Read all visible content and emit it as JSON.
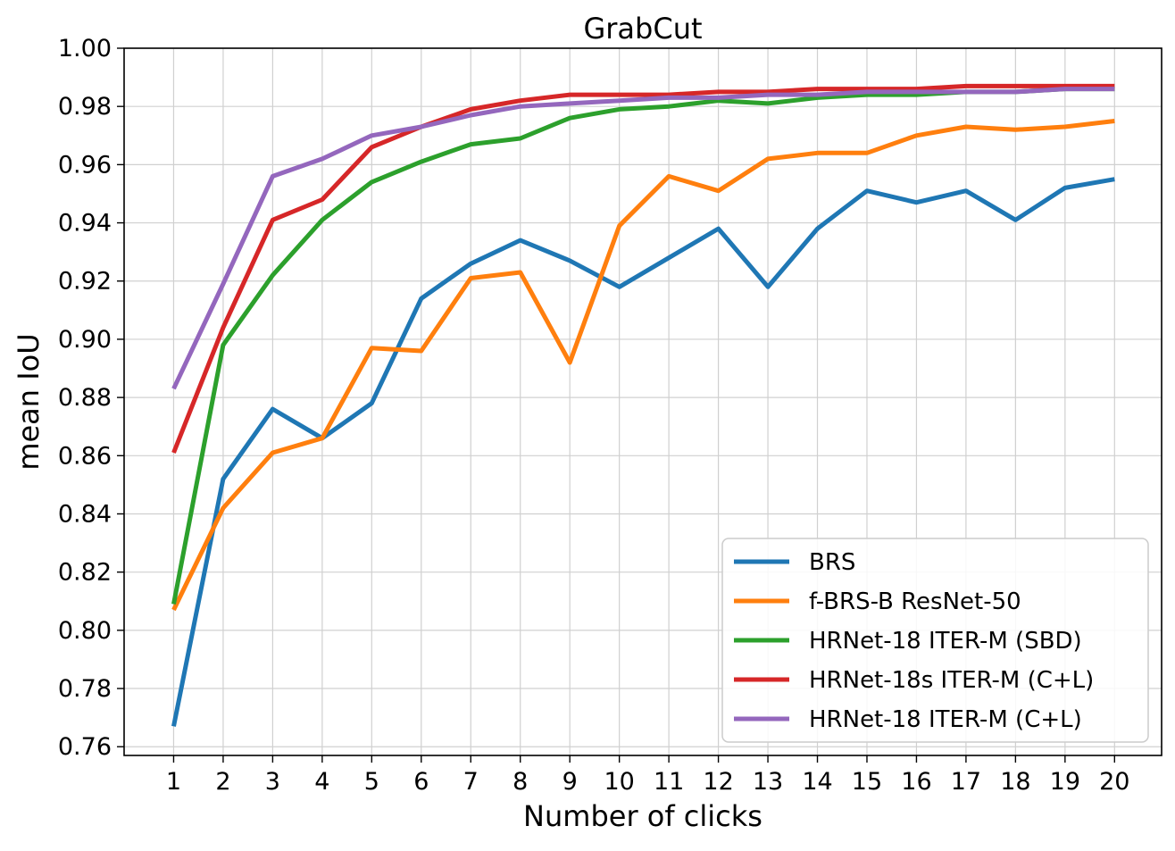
{
  "chart_data": {
    "type": "line",
    "title": "GrabCut",
    "xlabel": "Number of clicks",
    "ylabel": "mean IoU",
    "x": [
      1,
      2,
      3,
      4,
      5,
      6,
      7,
      8,
      9,
      10,
      11,
      12,
      13,
      14,
      15,
      16,
      17,
      18,
      19,
      20
    ],
    "xlim": [
      0.0,
      20.95
    ],
    "ylim": [
      0.757,
      1.0
    ],
    "yticks": [
      0.76,
      0.78,
      0.8,
      0.82,
      0.84,
      0.86,
      0.88,
      0.9,
      0.92,
      0.94,
      0.96,
      0.98,
      1.0
    ],
    "ytick_labels": [
      "0.76",
      "0.78",
      "0.80",
      "0.82",
      "0.84",
      "0.86",
      "0.88",
      "0.90",
      "0.92",
      "0.94",
      "0.96",
      "0.98",
      "1.00"
    ],
    "xtick_labels": [
      "1",
      "2",
      "3",
      "4",
      "5",
      "6",
      "7",
      "8",
      "9",
      "10",
      "11",
      "12",
      "13",
      "14",
      "15",
      "16",
      "17",
      "18",
      "19",
      "20"
    ],
    "grid": true,
    "legend_position": "bottom-right",
    "series": [
      {
        "name": "BRS",
        "color": "#1f77b4",
        "values": [
          0.767,
          0.852,
          0.876,
          0.866,
          0.878,
          0.914,
          0.926,
          0.934,
          0.927,
          0.918,
          0.928,
          0.938,
          0.918,
          0.938,
          0.951,
          0.947,
          0.951,
          0.941,
          0.952,
          0.955
        ]
      },
      {
        "name": "f-BRS-B ResNet-50",
        "color": "#ff7f0e",
        "values": [
          0.807,
          0.842,
          0.861,
          0.866,
          0.897,
          0.896,
          0.921,
          0.923,
          0.892,
          0.939,
          0.956,
          0.951,
          0.962,
          0.964,
          0.964,
          0.97,
          0.973,
          0.972,
          0.973,
          0.975
        ]
      },
      {
        "name": "HRNet-18 ITER-M (SBD)",
        "color": "#2ca02c",
        "values": [
          0.809,
          0.898,
          0.922,
          0.941,
          0.954,
          0.961,
          0.967,
          0.969,
          0.976,
          0.979,
          0.98,
          0.982,
          0.981,
          0.983,
          0.984,
          0.984,
          0.985,
          0.985,
          0.986,
          0.986
        ]
      },
      {
        "name": "HRNet-18s ITER-M (C+L)",
        "color": "#d62728",
        "values": [
          0.861,
          0.904,
          0.941,
          0.948,
          0.966,
          0.973,
          0.979,
          0.982,
          0.984,
          0.984,
          0.984,
          0.985,
          0.985,
          0.986,
          0.986,
          0.986,
          0.987,
          0.987,
          0.987,
          0.987
        ]
      },
      {
        "name": "HRNet-18 ITER-M (C+L)",
        "color": "#9467bd",
        "values": [
          0.883,
          0.919,
          0.956,
          0.962,
          0.97,
          0.973,
          0.977,
          0.98,
          0.981,
          0.982,
          0.983,
          0.983,
          0.984,
          0.984,
          0.985,
          0.985,
          0.985,
          0.985,
          0.986,
          0.986
        ]
      }
    ]
  }
}
